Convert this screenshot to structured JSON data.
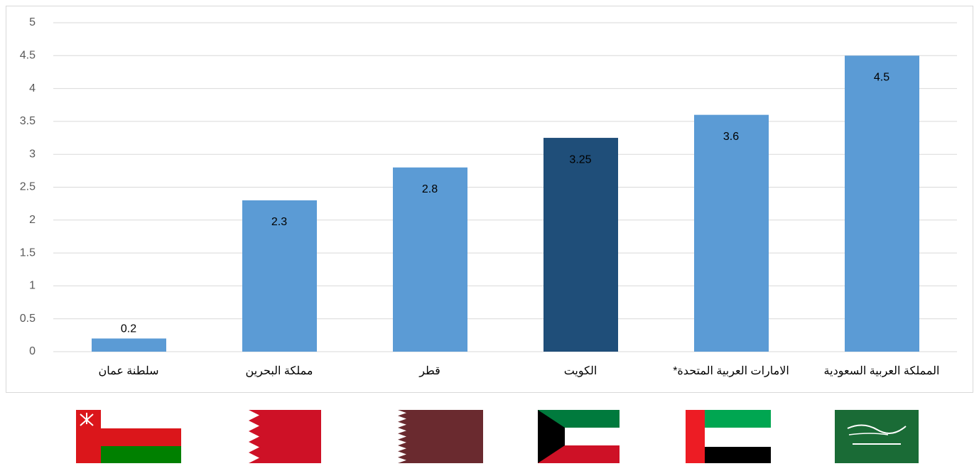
{
  "chart_data": {
    "type": "bar",
    "categories": [
      "سلطنة عمان",
      "مملكة البحرين",
      "قطر",
      "الكويت",
      "الامارات العربية المتحدة*",
      "المملكة العربية السعودية"
    ],
    "values": [
      0.2,
      2.3,
      2.8,
      3.25,
      3.6,
      4.5
    ],
    "colors": [
      "#5b9bd5",
      "#5b9bd5",
      "#5b9bd5",
      "#1f4e79",
      "#5b9bd5",
      "#5b9bd5"
    ],
    "ylim": [
      0,
      5
    ],
    "yticks": [
      0,
      0.5,
      1,
      1.5,
      2,
      2.5,
      3,
      3.5,
      4,
      4.5,
      5
    ],
    "grid": true
  }
}
